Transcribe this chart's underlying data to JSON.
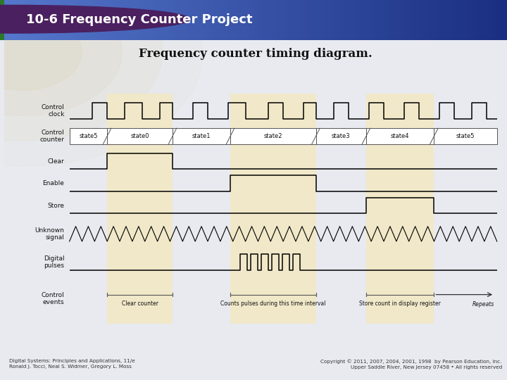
{
  "title": "Frequency counter timing diagram.",
  "header_title": "10-6 Frequency Counter Project",
  "header_bg_left": "#3355aa",
  "header_bg_right": "#1a2e80",
  "header_text_color": "#ffffff",
  "bg_color": "#ffffff",
  "highlight_color": "#f0e8c8",
  "fig_bg": "#e8eaf0",
  "footer_left": "Digital Systems: Principles and Applications, 11/e\nRonald J. Tocci, Neal S. Widmer, Gregory L. Moss",
  "footer_right": "Copyright © 2011, 2007, 2004, 2001, 1998  by Pearson Education, Inc.\nUpper Saddle River, New Jersey 07458 • All rights reserved",
  "signal_labels": [
    "Control\nclock",
    "Control\ncounter",
    "Clear",
    "Enable",
    "Store",
    "Unknown\nsignal",
    "Digital\npulses",
    "Control\nevents"
  ],
  "state_labels": [
    "state5",
    "state0",
    "state1",
    "state2",
    "state3",
    "state4",
    "state5"
  ],
  "event_labels": [
    "Clear counter",
    "Counts pulses during this time interval",
    "Store count in display register"
  ],
  "repeats_label": "Repeats",
  "stripe_color": "#2a7a2a",
  "bullet_color": "#4a2060",
  "circle_color": "#d4c890"
}
